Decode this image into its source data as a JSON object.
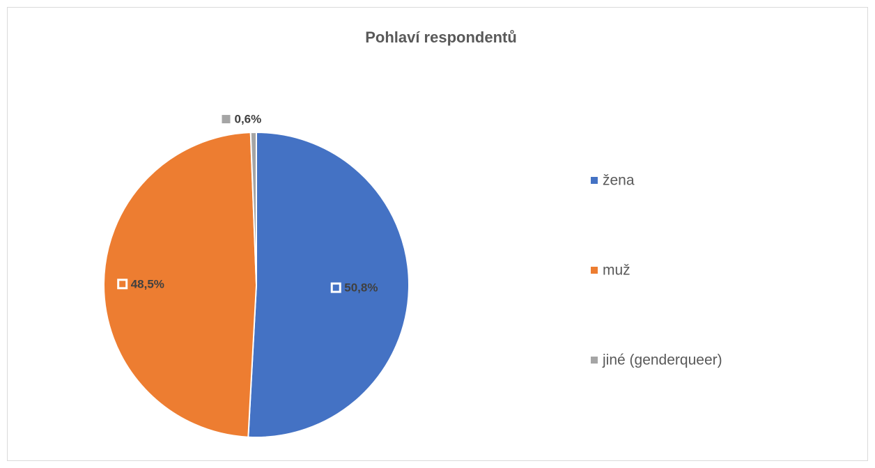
{
  "chart_data": {
    "type": "pie",
    "title": "Pohlaví respondentů",
    "categories": [
      "žena",
      "muž",
      "jiné (genderqueer)"
    ],
    "values": [
      50.8,
      48.5,
      0.6
    ],
    "value_labels": [
      "50,8%",
      "48,5%",
      "0,6%"
    ],
    "colors": [
      "#4472c4",
      "#ed7d31",
      "#a5a5a5"
    ],
    "legend": "right"
  }
}
